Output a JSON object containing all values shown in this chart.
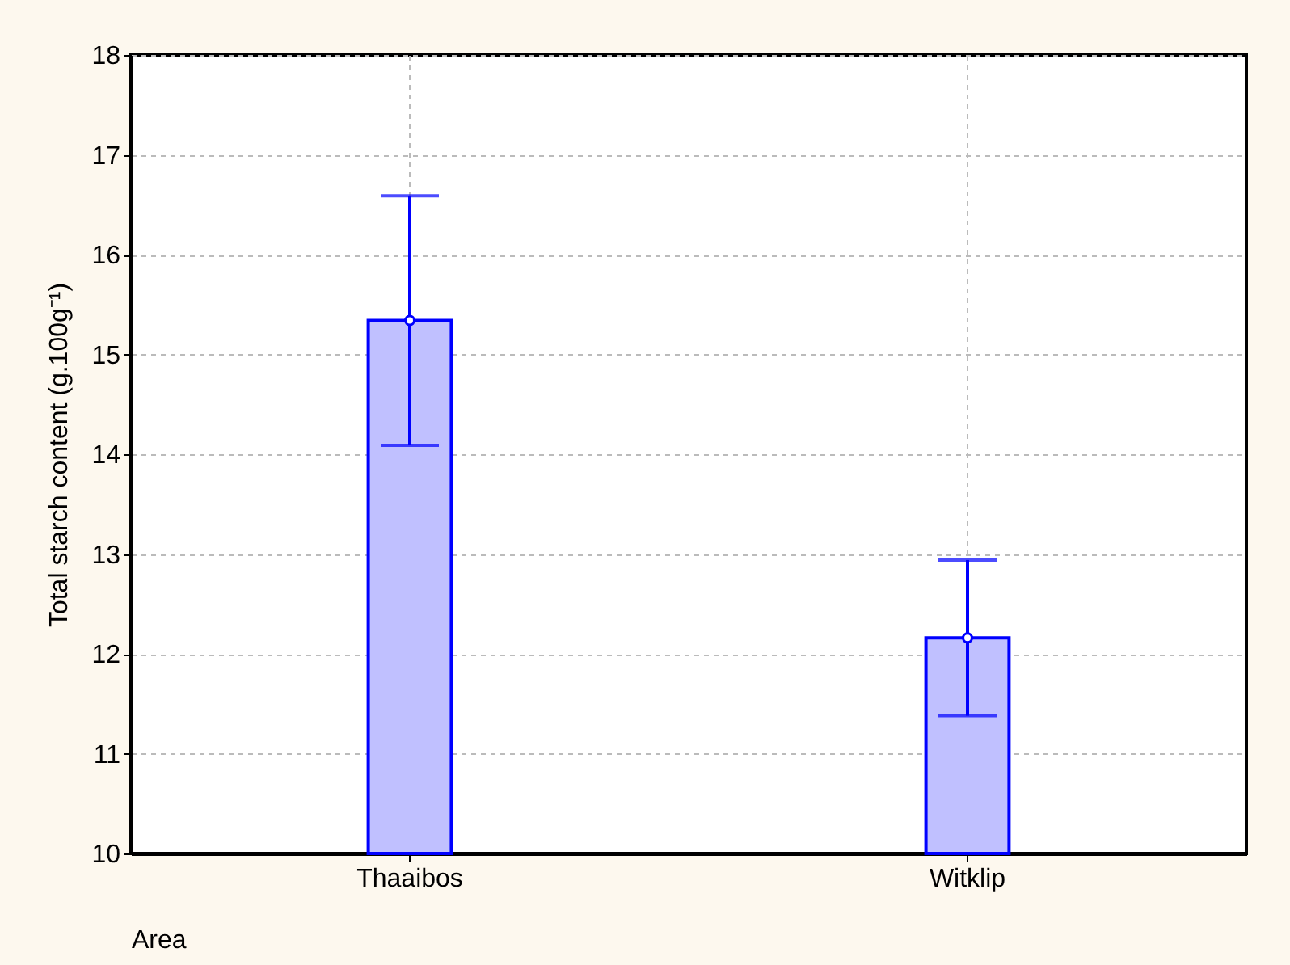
{
  "chart_data": {
    "type": "bar",
    "xlabel": "Area",
    "ylabel": "Total starch content (g.100g⁻¹)",
    "categories": [
      "Thaaibos",
      "Witklip"
    ],
    "series": [
      {
        "color": "#c0c0ff",
        "values": [
          15.34,
          12.16
        ],
        "errors": [
          1.25,
          0.78
        ]
      },
      {
        "type": "scatter",
        "color": "#ffffff",
        "marker": "circle",
        "x": [
          "Thaaibos",
          "Witklip"
        ],
        "values": [
          15.34,
          12.16
        ]
      }
    ],
    "ylim": [
      10,
      18
    ],
    "yticks": [
      10,
      11,
      12,
      13,
      14,
      15,
      16,
      17,
      18
    ],
    "grid": true
  }
}
